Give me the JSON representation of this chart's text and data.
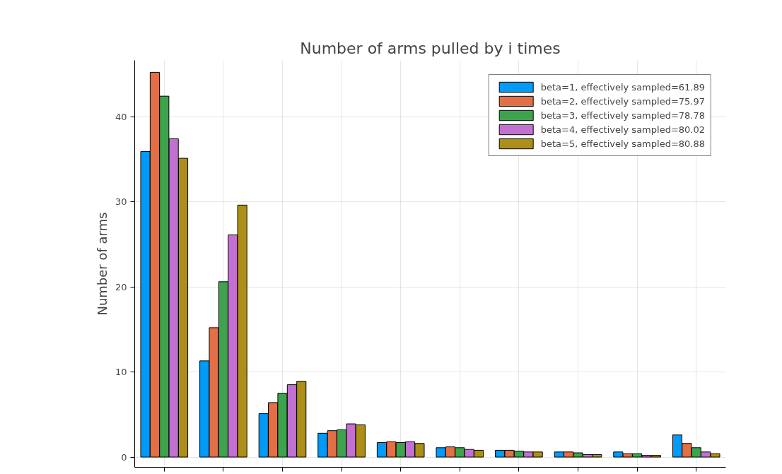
{
  "chart_data": {
    "type": "bar",
    "title": "Number of arms pulled by i times",
    "ylabel": "Number of arms",
    "categories": [
      null,
      null,
      null,
      null,
      null,
      null,
      null,
      null,
      null,
      null
    ],
    "series": [
      {
        "name": "beta=1, effectively sampled=61.89",
        "color": "#009af9",
        "values": [
          35.9,
          11.3,
          5.1,
          2.8,
          1.7,
          1.1,
          0.8,
          0.6,
          0.6,
          2.6
        ]
      },
      {
        "name": "beta=2, effectively sampled=75.97",
        "color": "#e26f46",
        "values": [
          45.2,
          15.2,
          6.4,
          3.1,
          1.8,
          1.2,
          0.8,
          0.6,
          0.4,
          1.6
        ]
      },
      {
        "name": "beta=3, effectively sampled=78.78",
        "color": "#3da44d",
        "values": [
          42.4,
          20.6,
          7.5,
          3.2,
          1.7,
          1.1,
          0.7,
          0.5,
          0.4,
          1.1
        ]
      },
      {
        "name": "beta=4, effectively sampled=80.02",
        "color": "#c271d2",
        "values": [
          37.4,
          26.1,
          8.5,
          3.9,
          1.8,
          0.9,
          0.6,
          0.3,
          0.2,
          0.6
        ]
      },
      {
        "name": "beta=5, effectively sampled=80.88",
        "color": "#ac8e18",
        "values": [
          35.1,
          29.6,
          8.9,
          3.8,
          1.6,
          0.8,
          0.6,
          0.3,
          0.2,
          0.4
        ]
      }
    ],
    "ylim": [
      -1.2,
      46.6
    ],
    "yticks": [
      0,
      10,
      20,
      30,
      40
    ],
    "grid": true,
    "legend": "top right"
  }
}
